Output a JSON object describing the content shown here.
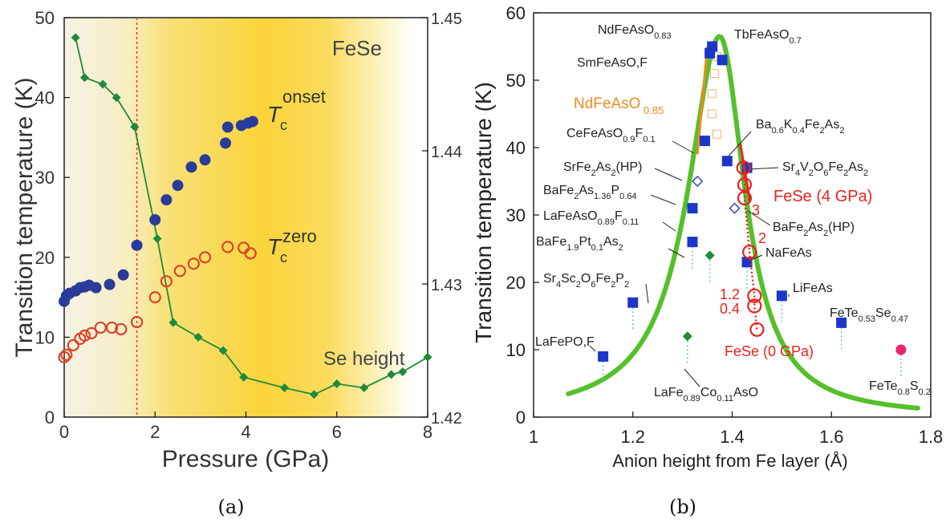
{
  "chart_data": [
    {
      "type": "scatter",
      "ylabel": "Transition temperature (K)",
      "xlabel": "Pressure (GPa)",
      "xlim": [
        0,
        8
      ],
      "ylim": [
        0,
        50
      ],
      "xticks": [
        "0",
        "2",
        "4",
        "6",
        "8"
      ],
      "yticks": [
        "0",
        "10",
        "20",
        "30",
        "40",
        "50"
      ],
      "y2lim": [
        1.42,
        1.45
      ],
      "y2ticks": [
        "1.42",
        "1.43",
        "1.44",
        "1.45"
      ],
      "panel_title": "FeSe",
      "caption": "(a)",
      "dashed_line_x": 1.6,
      "labels": {
        "tc_onset_main": "T",
        "tc_onset_sub": "c",
        "tc_onset_sup": "onset",
        "tc_zero_main": "T",
        "tc_zero_sub": "c",
        "tc_zero_sup": "zero",
        "se_height": "Se height"
      },
      "series": [
        {
          "key": "tc_onset",
          "marker": "filled-circle",
          "color": "#2a3b9a",
          "points": [
            [
              0.0,
              14.5
            ],
            [
              0.05,
              15.2
            ],
            [
              0.12,
              15.5
            ],
            [
              0.25,
              15.8
            ],
            [
              0.35,
              16.2
            ],
            [
              0.45,
              16.3
            ],
            [
              0.55,
              16.5
            ],
            [
              0.7,
              16.2
            ],
            [
              1.0,
              16.6
            ],
            [
              1.3,
              17.8
            ],
            [
              1.6,
              21.5
            ],
            [
              2.0,
              24.7
            ],
            [
              2.25,
              27.2
            ],
            [
              2.5,
              29.0
            ],
            [
              2.8,
              31.3
            ],
            [
              3.1,
              32.2
            ],
            [
              3.55,
              34.3
            ],
            [
              3.6,
              36.3
            ],
            [
              3.9,
              36.5
            ],
            [
              4.05,
              36.8
            ],
            [
              4.15,
              37.0
            ]
          ]
        },
        {
          "key": "tc_zero",
          "marker": "open-circle",
          "color": "#d9452b",
          "points": [
            [
              0.0,
              7.5
            ],
            [
              0.05,
              7.8
            ],
            [
              0.2,
              9.0
            ],
            [
              0.35,
              9.8
            ],
            [
              0.45,
              10.2
            ],
            [
              0.6,
              10.5
            ],
            [
              0.8,
              11.2
            ],
            [
              1.05,
              11.2
            ],
            [
              1.25,
              11.0
            ],
            [
              1.6,
              11.9
            ],
            [
              2.0,
              15.0
            ],
            [
              2.25,
              17.0
            ],
            [
              2.55,
              18.3
            ],
            [
              2.85,
              19.2
            ],
            [
              3.1,
              20.0
            ],
            [
              3.6,
              21.3
            ],
            [
              3.95,
              21.2
            ],
            [
              4.1,
              20.5
            ]
          ]
        },
        {
          "key": "se_height",
          "marker": "filled-diamond",
          "color": "#1e8a3c",
          "line": true,
          "points": [
            [
              0.25,
              1.4485
            ],
            [
              0.45,
              1.4455
            ],
            [
              0.85,
              1.445
            ],
            [
              1.15,
              1.444
            ],
            [
              1.55,
              1.4418
            ],
            [
              2.05,
              1.4334
            ],
            [
              2.4,
              1.4271
            ],
            [
              2.95,
              1.426
            ],
            [
              3.5,
              1.425
            ],
            [
              3.95,
              1.423
            ],
            [
              4.85,
              1.4222
            ],
            [
              5.5,
              1.4217
            ],
            [
              6.0,
              1.4225
            ],
            [
              6.6,
              1.4222
            ],
            [
              7.2,
              1.4232
            ],
            [
              7.45,
              1.4234
            ],
            [
              8.0,
              1.4245
            ]
          ]
        }
      ]
    },
    {
      "type": "scatter",
      "ylabel": "Transition temperature (K)",
      "xlabel": "Anion height from Fe layer (Å)",
      "xlim": [
        1.0,
        1.8
      ],
      "ylim": [
        0,
        60
      ],
      "xticks": [
        "1",
        "1.2",
        "1.4",
        "1.6",
        "1.8"
      ],
      "yticks": [
        "0",
        "10",
        "20",
        "30",
        "40",
        "50",
        "60"
      ],
      "caption": "(b)",
      "fese_pressure_labels": [
        "FeSe (4 GPa)",
        "FeSe (0 GPa)",
        "3",
        "2",
        "1.2",
        "0.4"
      ],
      "nd_85_label": "NdFeAsO",
      "nd_85_sub": "0.85",
      "points": [
        {
          "x": 1.36,
          "y": 55.0,
          "marker": "blue-square",
          "label": "NdFeAsO",
          "sub": "0.83"
        },
        {
          "x": 1.355,
          "y": 54.0,
          "marker": "blue-square",
          "label": "SmFeAsO,F"
        },
        {
          "x": 1.38,
          "y": 53.0,
          "marker": "blue-square",
          "label": "TbFeAsO",
          "sub": "0.7"
        },
        {
          "x": 1.345,
          "y": 41.0,
          "marker": "blue-square",
          "label": "CeFeAsO",
          "parts": [
            "0.9",
            "F",
            "0.1"
          ]
        },
        {
          "x": 1.39,
          "y": 38.0,
          "marker": "blue-square",
          "label": "Ba",
          "parts": [
            "0.6",
            "K",
            "0.4",
            "Fe",
            "2",
            "As",
            "2"
          ]
        },
        {
          "x": 1.43,
          "y": 37.0,
          "marker": "blue-square",
          "label": "Sr",
          "parts": [
            "4",
            "V",
            "2",
            "O",
            "6",
            "Fe",
            "2",
            "As",
            "2"
          ]
        },
        {
          "x": 1.33,
          "y": 35.0,
          "marker": "open-diamond",
          "label": "SrFe",
          "parts": [
            "2",
            "As",
            "2",
            "(HP)"
          ]
        },
        {
          "x": 1.32,
          "y": 31.0,
          "marker": "blue-square",
          "label": "BaFe",
          "parts": [
            "2",
            "As",
            "1.36",
            "P",
            "0.64"
          ]
        },
        {
          "x": 1.405,
          "y": 31.0,
          "marker": "open-diamond",
          "label": "BaFe",
          "parts": [
            "2",
            "As",
            "2",
            "(HP)"
          ]
        },
        {
          "x": 1.32,
          "y": 26.0,
          "marker": "blue-square",
          "label": "LaFeAsO",
          "parts": [
            "0.89",
            "F",
            "0.11"
          ]
        },
        {
          "x": 1.355,
          "y": 24.0,
          "marker": "green-diamond",
          "label": "BaFe",
          "parts": [
            "1.9",
            "Pt",
            "0.1",
            "As",
            "2"
          ]
        },
        {
          "x": 1.43,
          "y": 23.0,
          "marker": "blue-square",
          "label": "NaFeAs"
        },
        {
          "x": 1.2,
          "y": 17.0,
          "marker": "blue-square",
          "label": "Sr",
          "parts": [
            "4",
            "Sc",
            "2",
            "O",
            "6",
            "Fe",
            "2",
            "P",
            "2"
          ]
        },
        {
          "x": 1.5,
          "y": 18.0,
          "marker": "blue-square",
          "label": "LiFeAs"
        },
        {
          "x": 1.62,
          "y": 14.0,
          "marker": "blue-square",
          "label": "FeTe",
          "parts": [
            "0.53",
            "Se",
            "0.47"
          ]
        },
        {
          "x": 1.14,
          "y": 9.0,
          "marker": "blue-square",
          "label": "LaFePO,F"
        },
        {
          "x": 1.31,
          "y": 12.0,
          "marker": "green-diamond",
          "label": "LaFe",
          "parts": [
            "0.89",
            "Co",
            "0.11",
            "AsO"
          ]
        },
        {
          "x": 1.74,
          "y": 10.0,
          "marker": "pink-circle",
          "label": "FeTe",
          "parts": [
            "0.8",
            "S",
            "0.2"
          ]
        }
      ],
      "fese_points": [
        [
          1.423,
          37.0
        ],
        [
          1.425,
          34.5
        ],
        [
          1.425,
          32.5
        ],
        [
          1.435,
          24.5
        ],
        [
          1.445,
          18.0
        ],
        [
          1.445,
          16.5
        ],
        [
          1.45,
          13.0
        ]
      ],
      "fit_curve_color": "#55c02a",
      "fese_color": "#e8231f",
      "nd_color": "#f08a1e"
    }
  ]
}
